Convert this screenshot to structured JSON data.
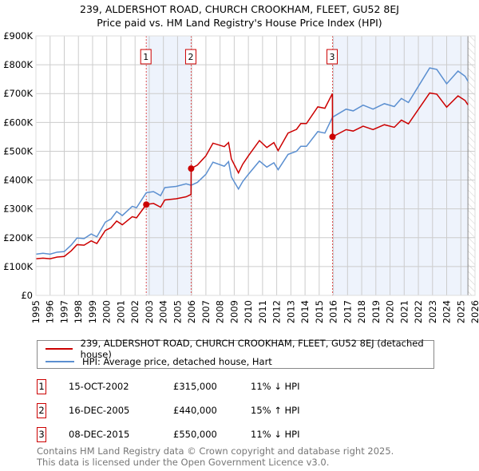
{
  "header": {
    "title": "239, ALDERSHOT ROAD, CHURCH CROOKHAM, FLEET, GU52 8EJ",
    "subtitle": "Price paid vs. HM Land Registry's House Price Index (HPI)"
  },
  "colors": {
    "property": "#cc0000",
    "hpi": "#5b8fd0",
    "shade": "#eef3fc",
    "grid": "#cccccc"
  },
  "chart_data": {
    "type": "line",
    "title": "Price paid vs. HM Land Registry's House Price Index (HPI)",
    "xlim": [
      1995,
      2026
    ],
    "ylim": [
      0,
      900000
    ],
    "grid": true,
    "x_ticks": [
      "1995",
      "1996",
      "1997",
      "1998",
      "1999",
      "2000",
      "2001",
      "2002",
      "2003",
      "2004",
      "2005",
      "2006",
      "2007",
      "2008",
      "2009",
      "2010",
      "2011",
      "2012",
      "2013",
      "2014",
      "2015",
      "2016",
      "2017",
      "2018",
      "2019",
      "2020",
      "2021",
      "2022",
      "2023",
      "2024",
      "2025",
      "2026"
    ],
    "y_ticks": [
      {
        "value": 0,
        "label": "£0"
      },
      {
        "value": 100000,
        "label": "£100K"
      },
      {
        "value": 200000,
        "label": "£200K"
      },
      {
        "value": 300000,
        "label": "£300K"
      },
      {
        "value": 400000,
        "label": "£400K"
      },
      {
        "value": 500000,
        "label": "£500K"
      },
      {
        "value": 600000,
        "label": "£600K"
      },
      {
        "value": 700000,
        "label": "£700K"
      },
      {
        "value": 800000,
        "label": "£800K"
      },
      {
        "value": 900000,
        "label": "£900K"
      }
    ],
    "forecast_start": 2025.5,
    "series": [
      {
        "name": "239, ALDERSHOT ROAD, CHURCH CROOKHAM, FLEET, GU52 8EJ (detached house)",
        "color": "#cc0000",
        "points": [
          [
            1995.0,
            127
          ],
          [
            1995.5,
            129
          ],
          [
            1996.0,
            127
          ],
          [
            1996.5,
            133
          ],
          [
            1997.0,
            135
          ],
          [
            1997.5,
            155
          ],
          [
            1997.9,
            176
          ],
          [
            1998.4,
            174
          ],
          [
            1998.9,
            189
          ],
          [
            1999.3,
            180
          ],
          [
            1999.9,
            225
          ],
          [
            2000.3,
            235
          ],
          [
            2000.7,
            258
          ],
          [
            2001.1,
            245
          ],
          [
            2001.8,
            273
          ],
          [
            2002.1,
            269
          ],
          [
            2002.79,
            315
          ],
          [
            2003.3,
            319
          ],
          [
            2003.8,
            306
          ],
          [
            2004.1,
            331
          ],
          [
            2004.9,
            335
          ],
          [
            2005.6,
            342
          ],
          [
            2005.95,
            350
          ],
          [
            2005.96,
            440
          ],
          [
            2006.4,
            452
          ],
          [
            2007.0,
            484
          ],
          [
            2007.5,
            528
          ],
          [
            2008.3,
            516
          ],
          [
            2008.6,
            530
          ],
          [
            2008.8,
            473
          ],
          [
            2009.3,
            425
          ],
          [
            2009.6,
            455
          ],
          [
            2010.0,
            484
          ],
          [
            2010.78,
            537
          ],
          [
            2011.3,
            513
          ],
          [
            2011.8,
            530
          ],
          [
            2012.1,
            502
          ],
          [
            2012.8,
            563
          ],
          [
            2013.4,
            576
          ],
          [
            2013.7,
            596
          ],
          [
            2014.1,
            596
          ],
          [
            2014.9,
            654
          ],
          [
            2015.4,
            649
          ],
          [
            2015.93,
            700
          ],
          [
            2015.94,
            550
          ],
          [
            2016.9,
            575
          ],
          [
            2017.4,
            570
          ],
          [
            2018.1,
            587
          ],
          [
            2018.8,
            575
          ],
          [
            2019.6,
            592
          ],
          [
            2020.3,
            583
          ],
          [
            2020.8,
            608
          ],
          [
            2021.3,
            595
          ],
          [
            2022.0,
            645
          ],
          [
            2022.8,
            702
          ],
          [
            2023.3,
            698
          ],
          [
            2024.0,
            653
          ],
          [
            2024.8,
            692
          ],
          [
            2025.3,
            676
          ],
          [
            2025.5,
            661
          ]
        ]
      },
      {
        "name": "HPI: Average price, detached house, Hart",
        "color": "#5b8fd0",
        "points": [
          [
            1995.0,
            143
          ],
          [
            1995.5,
            146
          ],
          [
            1996.0,
            143
          ],
          [
            1996.5,
            150
          ],
          [
            1997.0,
            152
          ],
          [
            1997.5,
            175
          ],
          [
            1997.9,
            199
          ],
          [
            1998.4,
            197
          ],
          [
            1998.9,
            213
          ],
          [
            1999.3,
            203
          ],
          [
            1999.9,
            254
          ],
          [
            2000.3,
            265
          ],
          [
            2000.7,
            291
          ],
          [
            2001.1,
            277
          ],
          [
            2001.8,
            309
          ],
          [
            2002.1,
            304
          ],
          [
            2002.79,
            356
          ],
          [
            2003.3,
            360
          ],
          [
            2003.8,
            346
          ],
          [
            2004.1,
            374
          ],
          [
            2004.9,
            378
          ],
          [
            2005.6,
            387
          ],
          [
            2005.96,
            382
          ],
          [
            2006.4,
            392
          ],
          [
            2007.0,
            420
          ],
          [
            2007.5,
            462
          ],
          [
            2008.3,
            448
          ],
          [
            2008.6,
            464
          ],
          [
            2008.8,
            411
          ],
          [
            2009.3,
            369
          ],
          [
            2009.6,
            395
          ],
          [
            2010.0,
            420
          ],
          [
            2010.78,
            466
          ],
          [
            2011.3,
            445
          ],
          [
            2011.8,
            460
          ],
          [
            2012.1,
            436
          ],
          [
            2012.8,
            489
          ],
          [
            2013.4,
            500
          ],
          [
            2013.7,
            517
          ],
          [
            2014.1,
            517
          ],
          [
            2014.9,
            568
          ],
          [
            2015.4,
            563
          ],
          [
            2015.94,
            618
          ],
          [
            2016.9,
            646
          ],
          [
            2017.4,
            640
          ],
          [
            2018.1,
            660
          ],
          [
            2018.8,
            646
          ],
          [
            2019.6,
            665
          ],
          [
            2020.3,
            655
          ],
          [
            2020.8,
            683
          ],
          [
            2021.3,
            669
          ],
          [
            2022.0,
            725
          ],
          [
            2022.8,
            789
          ],
          [
            2023.3,
            784
          ],
          [
            2024.0,
            734
          ],
          [
            2024.8,
            778
          ],
          [
            2025.3,
            760
          ],
          [
            2025.5,
            743
          ]
        ]
      }
    ],
    "sales": [
      {
        "label": "1",
        "x": 2002.79,
        "price": 315
      },
      {
        "label": "2",
        "x": 2005.96,
        "price": 440
      },
      {
        "label": "3",
        "x": 2015.94,
        "price": 550
      }
    ],
    "value_units": "thousands GBP"
  },
  "legend": {
    "property": "239, ALDERSHOT ROAD, CHURCH CROOKHAM, FLEET, GU52 8EJ (detached house)",
    "hpi": "HPI: Average price, detached house, Hart"
  },
  "transactions": [
    {
      "num": "1",
      "date": "15-OCT-2002",
      "price": "£315,000",
      "hpi": "11% ↓ HPI"
    },
    {
      "num": "2",
      "date": "16-DEC-2005",
      "price": "£440,000",
      "hpi": "15% ↑ HPI"
    },
    {
      "num": "3",
      "date": "08-DEC-2015",
      "price": "£550,000",
      "hpi": "11% ↓ HPI"
    }
  ],
  "footer": {
    "line1": "Contains HM Land Registry data © Crown copyright and database right 2025.",
    "line2": "This data is licensed under the Open Government Licence v3.0."
  }
}
